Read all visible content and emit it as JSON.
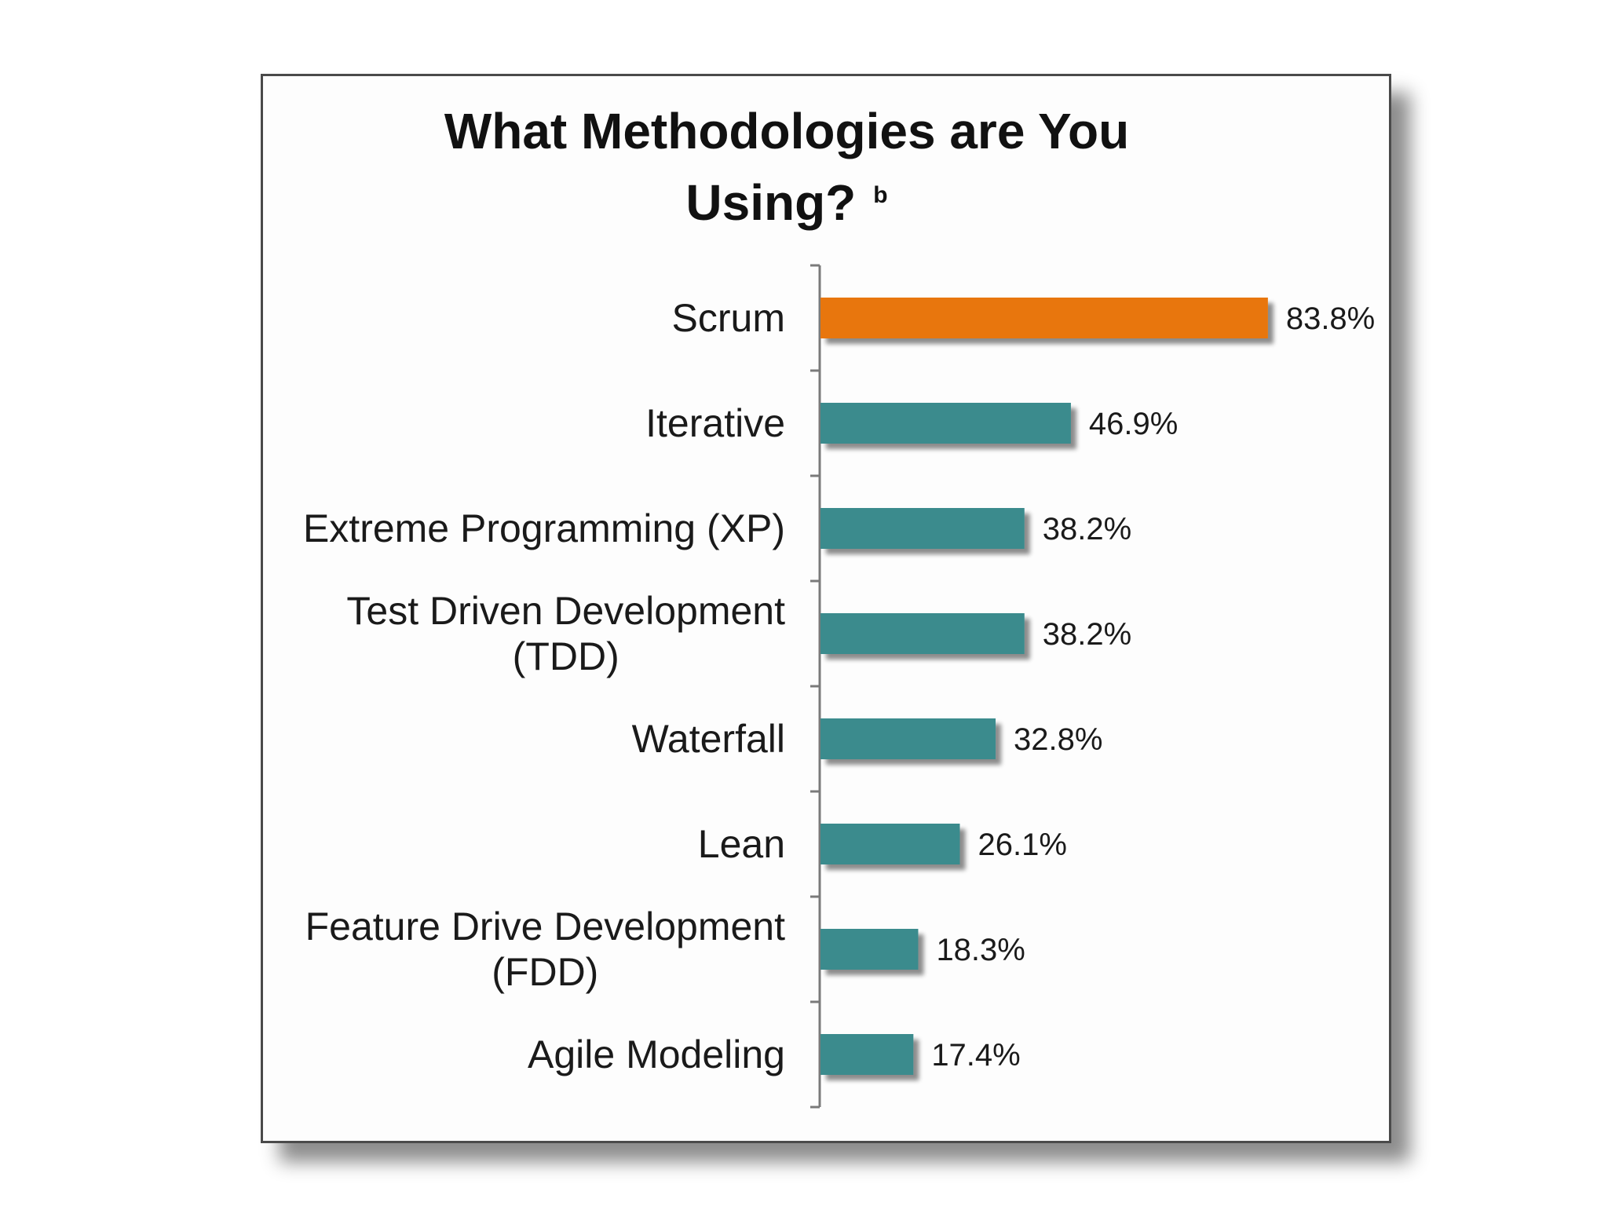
{
  "chart_data": {
    "type": "bar",
    "orientation": "horizontal",
    "title": "What Methodologies  are You Using?",
    "title_lines": [
      "What Methodologies  are You",
      "Using?"
    ],
    "title_note": "b",
    "categories": [
      "Scrum",
      "Iterative",
      "Extreme Programming (XP)",
      "Test Driven Development (TDD)",
      "Waterfall",
      "Lean",
      "Feature Drive Development (FDD)",
      "Agile Modeling"
    ],
    "category_label_lines": [
      [
        "Scrum"
      ],
      [
        "Iterative"
      ],
      [
        "Extreme Programming (XP)"
      ],
      [
        "Test Driven Development",
        "(TDD)"
      ],
      [
        "Waterfall"
      ],
      [
        "Lean"
      ],
      [
        "Feature Drive Development",
        "(FDD)"
      ],
      [
        "Agile Modeling"
      ]
    ],
    "values": [
      83.8,
      46.9,
      38.2,
      38.2,
      32.8,
      26.1,
      18.3,
      17.4
    ],
    "value_labels": [
      "83.8%",
      "46.9%",
      "38.2%",
      "38.2%",
      "32.8%",
      "26.1%",
      "18.3%",
      "17.4%"
    ],
    "xlim": [
      0,
      100
    ],
    "bar_colors": [
      "#e8760a",
      "#3a8b8d",
      "#3a8b8d",
      "#3a8b8d",
      "#3a8b8d",
      "#3a8b8d",
      "#3a8b8d",
      "#3a8b8d"
    ],
    "grid": false,
    "legend": "none",
    "xlabel": "",
    "ylabel": ""
  }
}
